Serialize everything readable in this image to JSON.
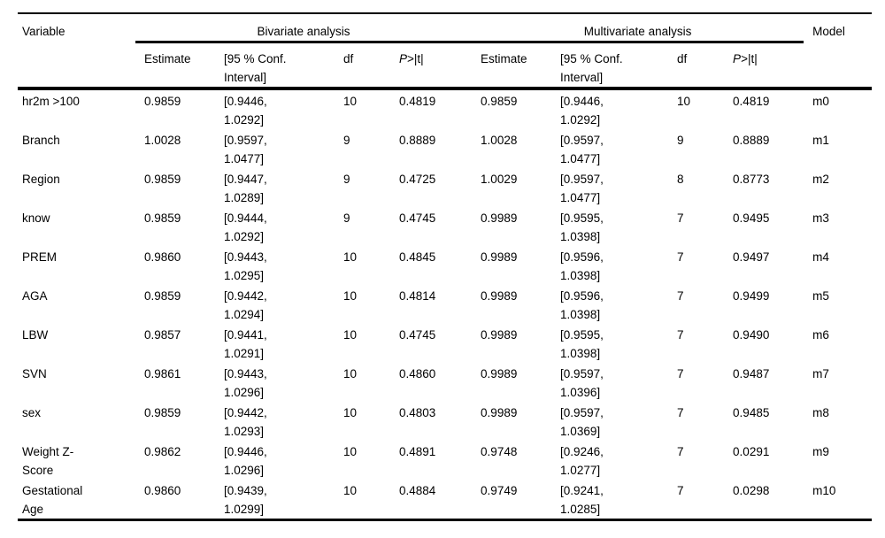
{
  "colors": {
    "background": "#ffffff",
    "text": "#000000",
    "rule": "#000000"
  },
  "table": {
    "header": {
      "variable": "Variable",
      "bivariate": "Bivariate analysis",
      "multivariate": "Multivariate analysis",
      "model": "Model",
      "sub": {
        "estimate": "Estimate",
        "ci_line1": "[95 % Conf.",
        "ci_line2": "Interval]",
        "df": "df",
        "p_italic": "P",
        "p_rest": ">|t|"
      }
    },
    "rows": [
      {
        "variable": [
          "hr2m >100"
        ],
        "biv_estimate": "0.9859",
        "biv_ci": [
          "[0.9446,",
          "1.0292]"
        ],
        "biv_df": "10",
        "biv_p": "0.4819",
        "multi_estimate": "0.9859",
        "multi_ci": [
          "[0.9446,",
          "1.0292]"
        ],
        "multi_df": "10",
        "multi_p": "0.4819",
        "model": "m0"
      },
      {
        "variable": [
          "Branch"
        ],
        "biv_estimate": "1.0028",
        "biv_ci": [
          "[0.9597,",
          "1.0477]"
        ],
        "biv_df": "9",
        "biv_p": "0.8889",
        "multi_estimate": "1.0028",
        "multi_ci": [
          "[0.9597,",
          "1.0477]"
        ],
        "multi_df": "9",
        "multi_p": "0.8889",
        "model": "m1"
      },
      {
        "variable": [
          "Region"
        ],
        "biv_estimate": "0.9859",
        "biv_ci": [
          "[0.9447,",
          "1.0289]"
        ],
        "biv_df": "9",
        "biv_p": "0.4725",
        "multi_estimate": "1.0029",
        "multi_ci": [
          "[0.9597,",
          "1.0477]"
        ],
        "multi_df": "8",
        "multi_p": "0.8773",
        "model": "m2"
      },
      {
        "variable": [
          "know"
        ],
        "biv_estimate": "0.9859",
        "biv_ci": [
          "[0.9444,",
          "1.0292]"
        ],
        "biv_df": "9",
        "biv_p": "0.4745",
        "multi_estimate": "0.9989",
        "multi_ci": [
          "[0.9595,",
          "1.0398]"
        ],
        "multi_df": "7",
        "multi_p": "0.9495",
        "model": "m3"
      },
      {
        "variable": [
          "PREM"
        ],
        "biv_estimate": "0.9860",
        "biv_ci": [
          "[0.9443,",
          "1.0295]"
        ],
        "biv_df": "10",
        "biv_p": "0.4845",
        "multi_estimate": "0.9989",
        "multi_ci": [
          "[0.9596,",
          "1.0398]"
        ],
        "multi_df": "7",
        "multi_p": "0.9497",
        "model": "m4"
      },
      {
        "variable": [
          "AGA"
        ],
        "biv_estimate": "0.9859",
        "biv_ci": [
          "[0.9442,",
          "1.0294]"
        ],
        "biv_df": "10",
        "biv_p": "0.4814",
        "multi_estimate": "0.9989",
        "multi_ci": [
          "[0.9596,",
          "1.0398]"
        ],
        "multi_df": "7",
        "multi_p": "0.9499",
        "model": "m5"
      },
      {
        "variable": [
          "LBW"
        ],
        "biv_estimate": "0.9857",
        "biv_ci": [
          "[0.9441,",
          "1.0291]"
        ],
        "biv_df": "10",
        "biv_p": "0.4745",
        "multi_estimate": "0.9989",
        "multi_ci": [
          "[0.9595,",
          "1.0398]"
        ],
        "multi_df": "7",
        "multi_p": "0.9490",
        "model": "m6"
      },
      {
        "variable": [
          "SVN"
        ],
        "biv_estimate": "0.9861",
        "biv_ci": [
          "[0.9443,",
          "1.0296]"
        ],
        "biv_df": "10",
        "biv_p": "0.4860",
        "multi_estimate": "0.9989",
        "multi_ci": [
          "[0.9597,",
          "1.0396]"
        ],
        "multi_df": "7",
        "multi_p": "0.9487",
        "model": "m7"
      },
      {
        "variable": [
          "sex"
        ],
        "biv_estimate": "0.9859",
        "biv_ci": [
          "[0.9442,",
          "1.0293]"
        ],
        "biv_df": "10",
        "biv_p": "0.4803",
        "multi_estimate": "0.9989",
        "multi_ci": [
          "[0.9597,",
          "1.0369]"
        ],
        "multi_df": "7",
        "multi_p": "0.9485",
        "model": "m8"
      },
      {
        "variable": [
          "Weight Z-",
          "Score"
        ],
        "biv_estimate": "0.9862",
        "biv_ci": [
          "[0.9446,",
          "1.0296]"
        ],
        "biv_df": "10",
        "biv_p": "0.4891",
        "multi_estimate": "0.9748",
        "multi_ci": [
          "[0.9246,",
          "1.0277]"
        ],
        "multi_df": "7",
        "multi_p": "0.0291",
        "model": "m9"
      },
      {
        "variable": [
          "Gestational",
          "Age"
        ],
        "biv_estimate": "0.9860",
        "biv_ci": [
          "[0.9439,",
          "1.0299]"
        ],
        "biv_df": "10",
        "biv_p": "0.4884",
        "multi_estimate": "0.9749",
        "multi_ci": [
          "[0.9241,",
          "1.0285]"
        ],
        "multi_df": "7",
        "multi_p": "0.0298",
        "model": "m10"
      }
    ]
  }
}
